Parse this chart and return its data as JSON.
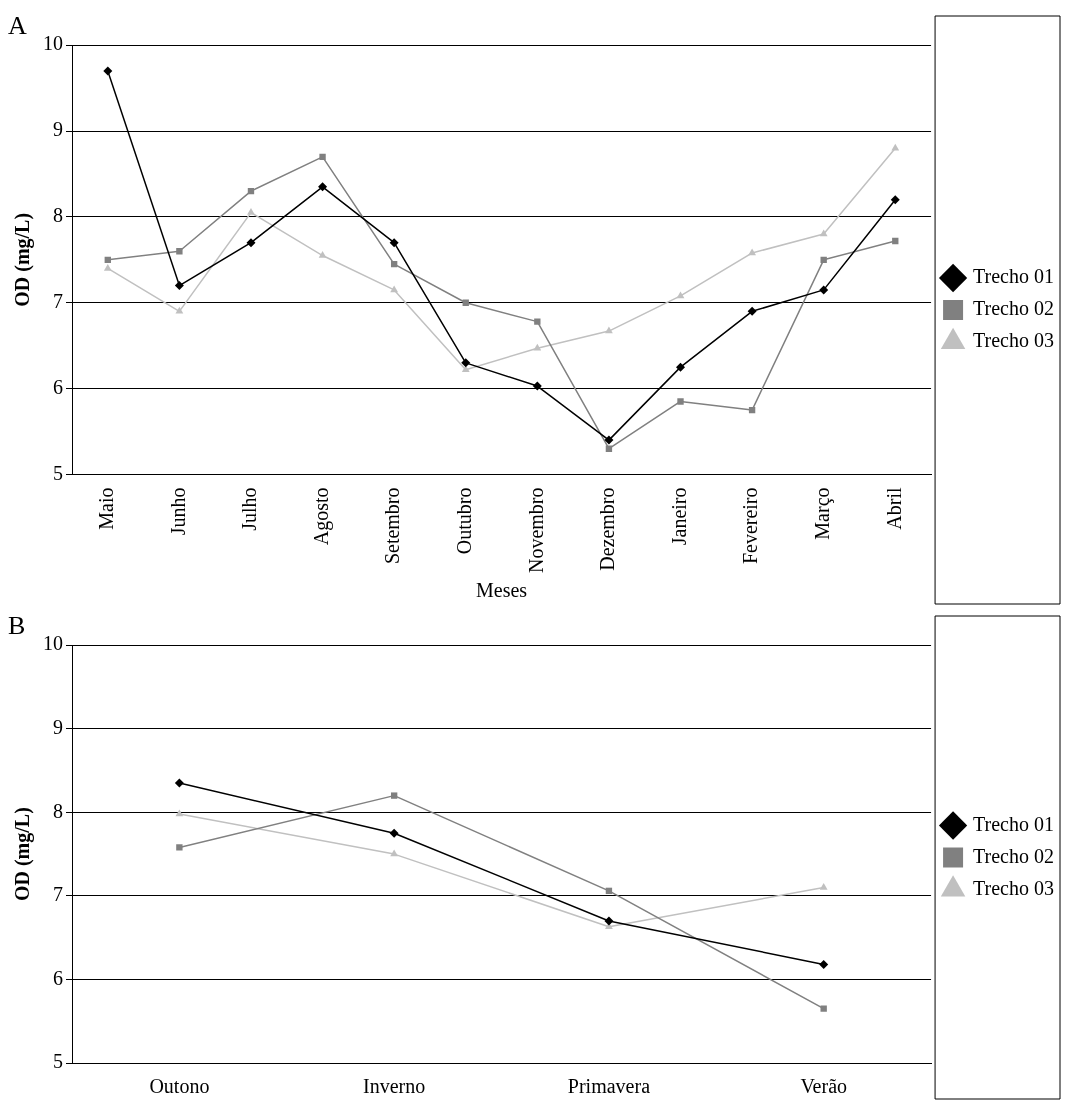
{
  "chart_data": [
    {
      "type": "line",
      "title": "A",
      "xlabel": "Meses",
      "ylabel": "OD (mg/L)",
      "categories": [
        "Maio",
        "Junho",
        "Julho",
        "Agosto",
        "Setembro",
        "Outubro",
        "Novembro",
        "Dezembro",
        "Janeiro",
        "Fevereiro",
        "Março",
        "Abril"
      ],
      "series": [
        {
          "name": "Trecho 01",
          "color": "#000000",
          "marker": "diamond",
          "values": [
            9.7,
            7.2,
            7.7,
            8.35,
            7.7,
            6.3,
            6.03,
            5.4,
            6.25,
            6.9,
            7.15,
            8.2
          ]
        },
        {
          "name": "Trecho 02",
          "color": "#808080",
          "marker": "square",
          "values": [
            7.5,
            7.6,
            8.3,
            8.7,
            7.45,
            7.0,
            6.78,
            5.3,
            5.85,
            5.75,
            7.5,
            7.72
          ]
        },
        {
          "name": "Trecho 03",
          "color": "#c0c0c0",
          "marker": "triangle",
          "values": [
            7.4,
            6.9,
            8.05,
            7.55,
            7.15,
            6.22,
            6.47,
            6.67,
            7.08,
            7.58,
            7.8,
            8.8
          ]
        }
      ],
      "ylim": [
        5,
        10
      ],
      "yticks": [
        5,
        6,
        7,
        8,
        9,
        10
      ],
      "grid": "y",
      "legend": "right"
    },
    {
      "type": "line",
      "title": "B",
      "ylabel": "OD (mg/L)",
      "categories": [
        "Outono",
        "Inverno",
        "Primavera",
        "Verão"
      ],
      "series": [
        {
          "name": "Trecho 01",
          "color": "#000000",
          "marker": "diamond",
          "values": [
            8.35,
            7.75,
            6.7,
            6.18
          ]
        },
        {
          "name": "Trecho 02",
          "color": "#808080",
          "marker": "square",
          "values": [
            7.58,
            8.2,
            7.06,
            5.65
          ]
        },
        {
          "name": "Trecho 03",
          "color": "#c0c0c0",
          "marker": "triangle",
          "values": [
            7.98,
            7.5,
            6.63,
            7.1
          ]
        }
      ],
      "ylim": [
        5,
        10
      ],
      "yticks": [
        5,
        6,
        7,
        8,
        9,
        10
      ],
      "grid": "y",
      "legend": "right"
    }
  ]
}
